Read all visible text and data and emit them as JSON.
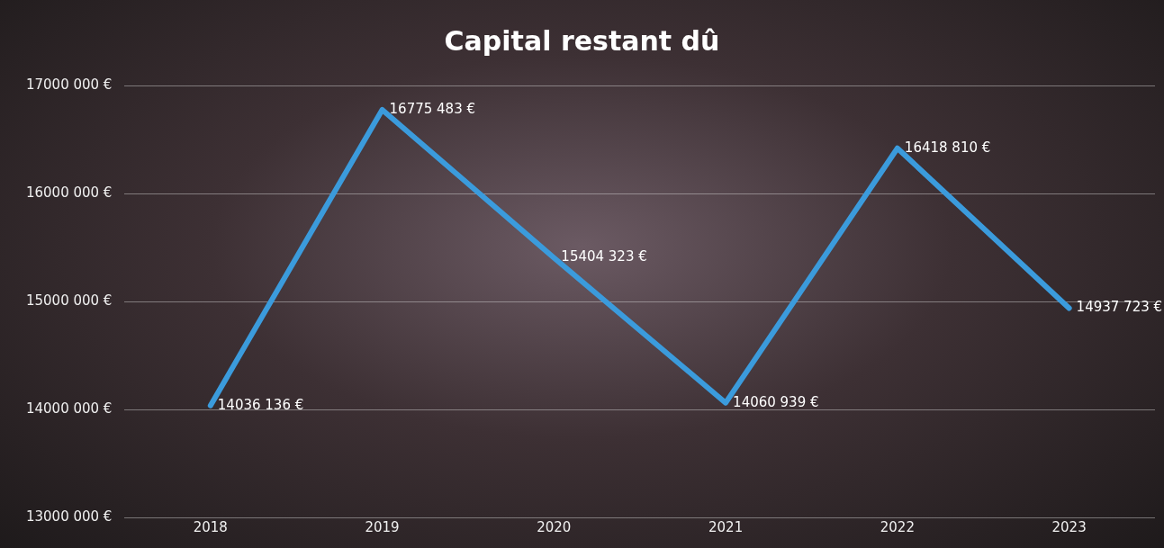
{
  "chart_data": {
    "type": "line",
    "title": "Capital restant dû",
    "categories": [
      "2018",
      "2019",
      "2020",
      "2021",
      "2022",
      "2023"
    ],
    "values": [
      14036136,
      16775483,
      15404323,
      14060939,
      16418810,
      14937723
    ],
    "value_labels": [
      "14036 136 €",
      "16775 483 €",
      "15404 323 €",
      "14060 939 €",
      "16418 810 €",
      "14937 723 €"
    ],
    "color": "#3b9bdc",
    "ylim": [
      13000000,
      17000000
    ],
    "yticks": [
      {
        "value": 13000000,
        "label": "13000 000 €"
      },
      {
        "value": 14000000,
        "label": "14000 000 €"
      },
      {
        "value": 15000000,
        "label": "15000 000 €"
      },
      {
        "value": 16000000,
        "label": "16000 000 €"
      },
      {
        "value": 17000000,
        "label": "17000 000 €"
      }
    ],
    "grid": "y",
    "legend": false,
    "marker": "none",
    "line_style": "solid"
  }
}
